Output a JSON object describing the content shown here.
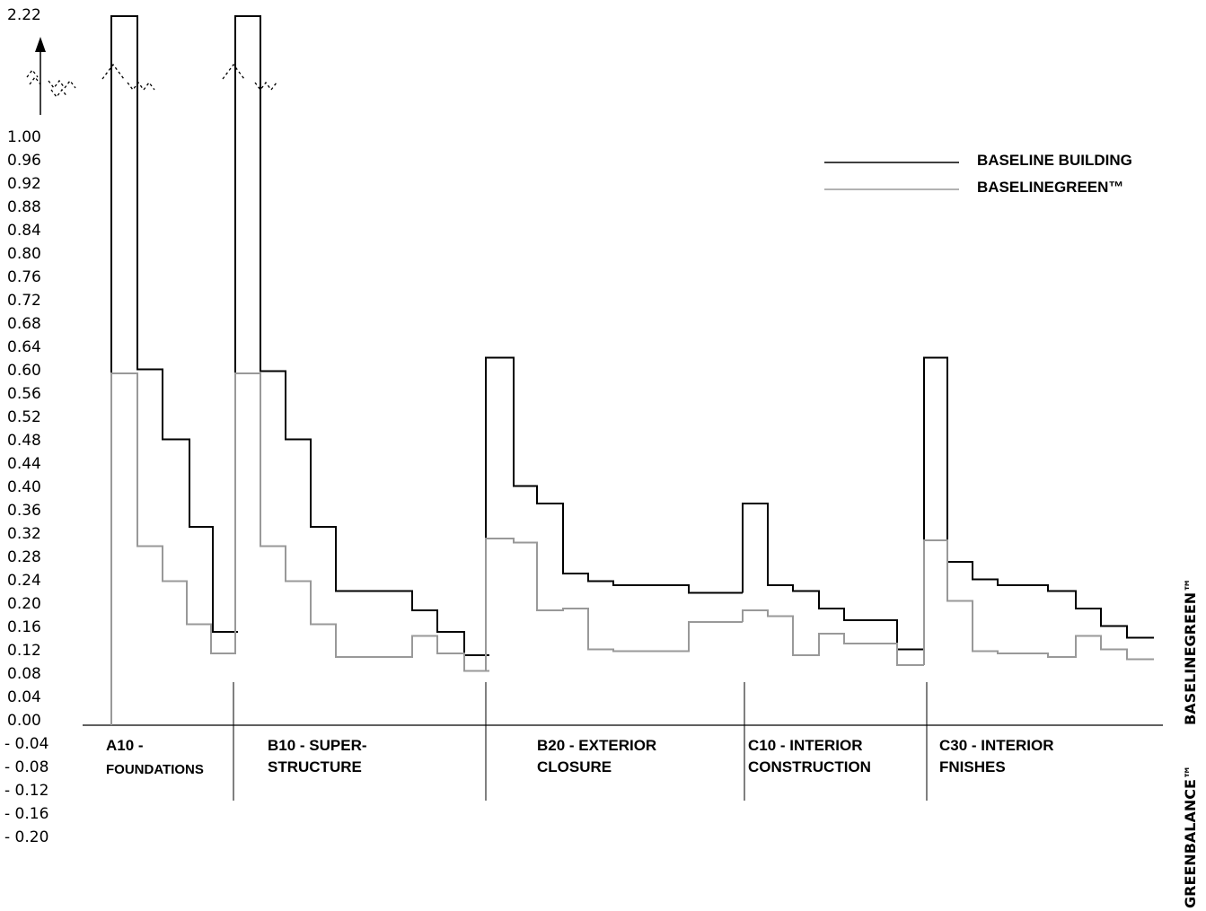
{
  "chart_data": {
    "type": "line",
    "step": true,
    "y_tick_labels": [
      "1.00",
      "0.96",
      "0.92",
      "0.88",
      "0.84",
      "0.80",
      "0.76",
      "0.72",
      "0.68",
      "0.64",
      "0.60",
      "0.56",
      "0.52",
      "0.48",
      "0.44",
      "0.40",
      "0.36",
      "0.32",
      "0.28",
      "0.24",
      "0.20",
      "0.16",
      "0.12",
      "0.08",
      "0.04",
      "0.00",
      "- 0.04",
      "- 0.08",
      "- 0.12",
      "- 0.16",
      "- 0.20"
    ],
    "y_break_label": "2.22",
    "ylim": [
      -0.2,
      1.0
    ],
    "axis_break": {
      "lower": 1.0,
      "upper": 2.22
    },
    "grid": false,
    "legend_position": "top-right",
    "categories": [
      {
        "line1": "A10 -",
        "line2": "FOUNDATIONS"
      },
      {
        "line1": "B10 - SUPER-",
        "line2": "STRUCTURE"
      },
      {
        "line1": "B20 - EXTERIOR",
        "line2": "CLOSURE"
      },
      {
        "line1": "C10 - INTERIOR",
        "line2": "CONSTRUCTION"
      },
      {
        "line1": "C30 - INTERIOR",
        "line2": "FNISHES"
      }
    ],
    "series": [
      {
        "name": "BASELINE BUILDING",
        "color": "#000000",
        "segments": [
          {
            "category": "A10 -",
            "steps": [
              2.22,
              0.61,
              0.49,
              0.34,
              0.16
            ]
          },
          {
            "category": "B10 - SUPER-",
            "steps": [
              2.22,
              0.607,
              0.49,
              0.34,
              0.23,
              0.23,
              0.23,
              0.197,
              0.16,
              0.12
            ]
          },
          {
            "category": "B20 - EXTERIOR",
            "steps": [
              0.63,
              0.41,
              0.38,
              0.26,
              0.247,
              0.24,
              0.24,
              0.24,
              0.227,
              0.227
            ]
          },
          {
            "category": "C10 - INTERIOR",
            "steps": [
              0.38,
              0.24,
              0.23,
              0.2,
              0.18,
              0.18,
              0.13
            ]
          },
          {
            "category": "C30 - INTERIOR",
            "steps": [
              0.63,
              0.28,
              0.25,
              0.24,
              0.24,
              0.23,
              0.2,
              0.17,
              0.15
            ]
          }
        ]
      },
      {
        "name": "BASELINEGREEN™",
        "color": "#999999",
        "segments": [
          {
            "category": "A10 -",
            "steps": [
              0.603,
              0.307,
              0.247,
              0.173,
              0.123
            ]
          },
          {
            "category": "B10 - SUPER-",
            "steps": [
              0.603,
              0.307,
              0.247,
              0.173,
              0.117,
              0.117,
              0.117,
              0.153,
              0.123,
              0.093
            ]
          },
          {
            "category": "B20 - EXTERIOR",
            "steps": [
              0.32,
              0.313,
              0.197,
              0.2,
              0.13,
              0.127,
              0.127,
              0.127,
              0.177,
              0.177
            ]
          },
          {
            "category": "C10 - INTERIOR",
            "steps": [
              0.197,
              0.187,
              0.12,
              0.157,
              0.14,
              0.14,
              0.103
            ]
          },
          {
            "category": "C30 - INTERIOR",
            "steps": [
              0.317,
              0.213,
              0.127,
              0.123,
              0.123,
              0.117,
              0.153,
              0.13,
              0.113
            ]
          }
        ]
      }
    ]
  },
  "side_labels": {
    "upper": "BASELINEGREEN™",
    "lower": "GREENBALANCE™"
  }
}
